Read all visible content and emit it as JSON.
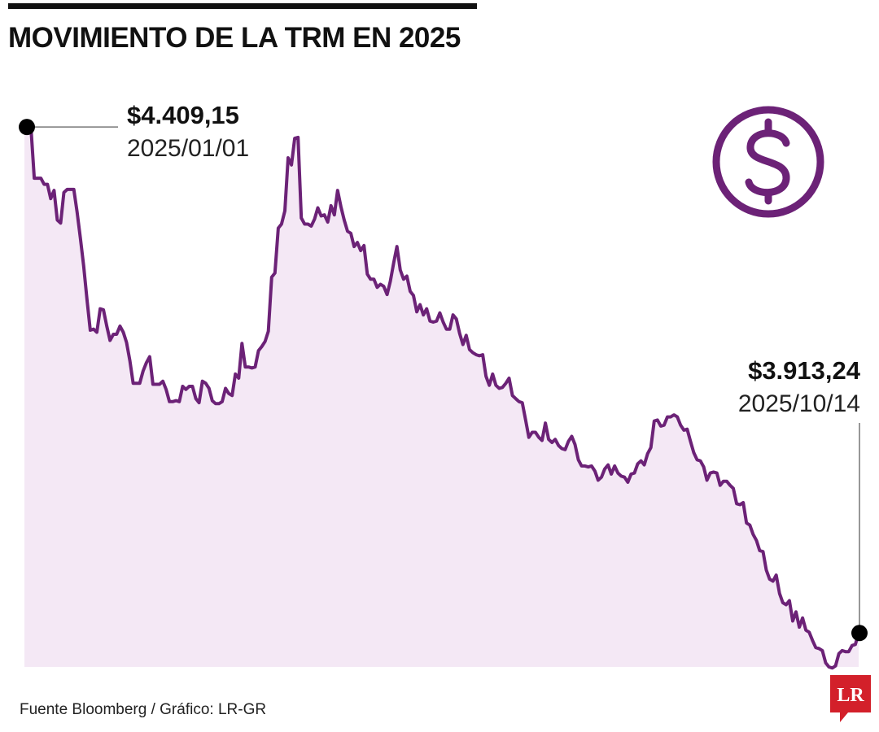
{
  "header": {
    "title": "MOVIMIENTO DE LA TRM EN 2025"
  },
  "footer": {
    "source": "Fuente Bloomberg / Gráfico: LR-GR",
    "logo_text": "LR"
  },
  "icons": {
    "currency": "dollar-icon"
  },
  "colors": {
    "line": "#6c2277",
    "fill": "#f4e8f5",
    "logo": "#d3202a",
    "text": "#111111"
  },
  "chart_data": {
    "type": "area",
    "title": "MOVIMIENTO DE LA TRM EN 2025",
    "xlabel": "",
    "ylabel": "",
    "grid": false,
    "legend": "none",
    "x_range": [
      "2025-01-01",
      "2025-10-14"
    ],
    "ylim": [
      3880,
      4430
    ],
    "series": [
      {
        "values": [
          4409.15,
          4359,
          4359,
          4359,
          4353,
          4353,
          4339,
          4347,
          4318,
          4315,
          4345,
          4348,
          4348,
          4348,
          4326,
          4300,
          4273,
          4240,
          4210,
          4211,
          4208,
          4231,
          4230,
          4214,
          4200,
          4206,
          4206,
          4214,
          4208,
          4198,
          4180,
          4158,
          4158,
          4158,
          4170,
          4178,
          4184,
          4157,
          4157,
          4157,
          4160,
          4152,
          4140,
          4140,
          4141,
          4140,
          4155,
          4152,
          4155,
          4155,
          4143,
          4139,
          4160,
          4158,
          4153,
          4141,
          4138,
          4138,
          4140,
          4153,
          4148,
          4146,
          4167,
          4163,
          4197,
          4174,
          4174,
          4173,
          4174,
          4190,
          4194,
          4199,
          4209,
          4262,
          4266,
          4310,
          4314,
          4327,
          4379,
          4372,
          4398,
          4399,
          4320,
          4314,
          4314,
          4312,
          4319,
          4330,
          4322,
          4323,
          4316,
          4332,
          4323,
          4347,
          4331,
          4318,
          4307,
          4305,
          4292,
          4296,
          4288,
          4293,
          4265,
          4260,
          4260,
          4252,
          4255,
          4253,
          4245,
          4258,
          4276,
          4292,
          4269,
          4260,
          4263,
          4248,
          4244,
          4228,
          4235,
          4225,
          4231,
          4219,
          4218,
          4219,
          4227,
          4218,
          4211,
          4211,
          4225,
          4221,
          4207,
          4196,
          4205,
          4191,
          4188,
          4186,
          4185,
          4186,
          4165,
          4156,
          4167,
          4156,
          4153,
          4154,
          4158,
          4163,
          4146,
          4143,
          4140,
          4139,
          4122,
          4105,
          4110,
          4110,
          4105,
          4102,
          4119,
          4103,
          4100,
          4103,
          4097,
          4094,
          4093,
          4101,
          4106,
          4098,
          4083,
          4077,
          4077,
          4076,
          4077,
          4072,
          4063,
          4066,
          4074,
          4078,
          4069,
          4077,
          4070,
          4067,
          4066,
          4061,
          4069,
          4070,
          4079,
          4082,
          4078,
          4089,
          4095,
          4121,
          4122,
          4116,
          4117,
          4125,
          4125,
          4127,
          4125,
          4117,
          4112,
          4113,
          4101,
          4090,
          4083,
          4082,
          4076,
          4063,
          4070,
          4071,
          4070,
          4058,
          4062,
          4062,
          4058,
          4055,
          4040,
          4039,
          4041,
          4021,
          4019,
          4010,
          4004,
          3994,
          3993,
          3975,
          3966,
          3964,
          3970,
          3952,
          3943,
          3941,
          3945,
          3925,
          3934,
          3919,
          3928,
          3916,
          3914,
          3906,
          3899,
          3898,
          3896,
          3884,
          3880,
          3879,
          3881,
          3893,
          3896,
          3895,
          3895,
          3901,
          3902,
          3913.24
        ]
      }
    ],
    "annotations": [
      {
        "value_label": "$4.409,15",
        "date_label": "2025/01/01",
        "date": "2025-01-01",
        "value": 4409.15,
        "anchor": "start"
      },
      {
        "value_label": "$3.913,24",
        "date_label": "2025/10/14",
        "date": "2025-10-14",
        "value": 3913.24,
        "anchor": "end"
      }
    ]
  }
}
